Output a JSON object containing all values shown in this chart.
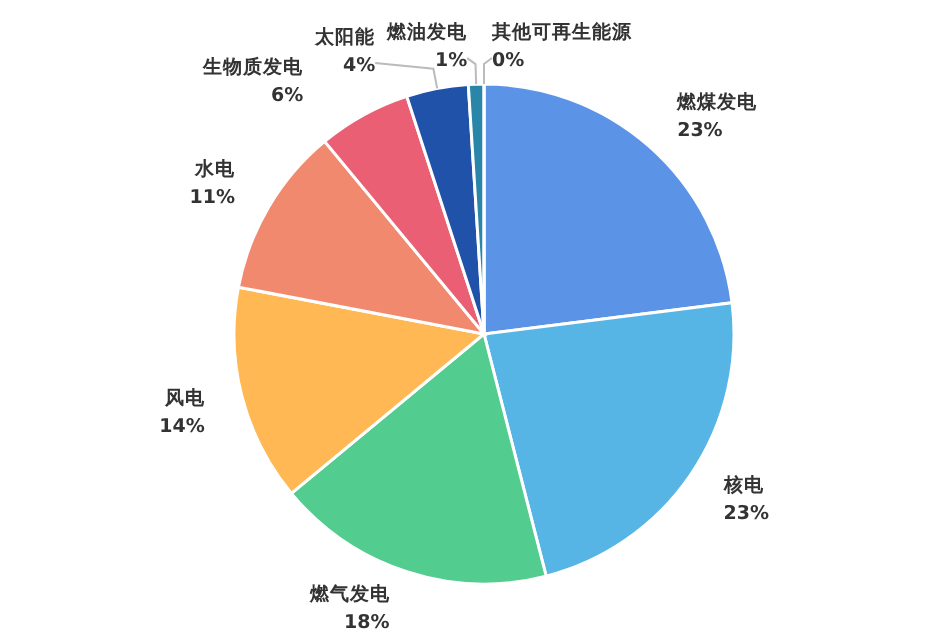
{
  "chart_data": {
    "type": "pie",
    "categories": [
      "燃煤发电",
      "核电",
      "燃气发电",
      "风电",
      "水电",
      "生物质发电",
      "太阳能",
      "燃油发电",
      "其他可再生能源"
    ],
    "values": [
      23,
      23,
      18,
      14,
      11,
      6,
      4,
      1,
      0
    ],
    "colors": [
      "#5b93e6",
      "#57b5e6",
      "#52cc8f",
      "#ffb854",
      "#f0896e",
      "#eb5f74",
      "#1f52a8",
      "#2a86a8",
      "#5bb85b"
    ],
    "value_labels": [
      "23%",
      "23%",
      "18%",
      "14%",
      "11%",
      "6%",
      "4%",
      "1%",
      "0%"
    ]
  }
}
